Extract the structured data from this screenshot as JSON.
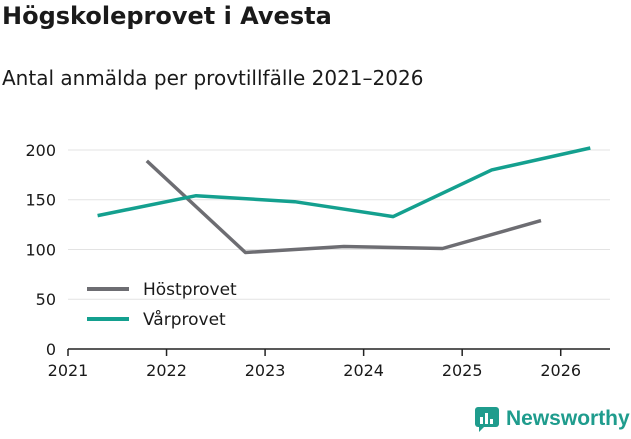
{
  "header": {
    "title": "Högskoleprovet i Avesta",
    "subtitle": "Antal anmälda per provtillfälle 2021–2026"
  },
  "brand": {
    "name": "Newsworthy",
    "color": "#1f9c8d"
  },
  "chart_data": {
    "type": "line",
    "title": "Högskoleprovet i Avesta",
    "subtitle": "Antal anmälda per provtillfälle 2021–2026",
    "xlabel": "",
    "ylabel": "",
    "xlim": [
      2021,
      2026.5
    ],
    "ylim": [
      0,
      210
    ],
    "x_ticks": [
      "2021",
      "2022",
      "2023",
      "2024",
      "2025",
      "2026"
    ],
    "y_ticks": [
      0,
      50,
      100,
      150,
      200
    ],
    "grid": true,
    "legend": "bottom-left",
    "series": [
      {
        "name": "Höstprovet",
        "color": "#6d6d72",
        "x": [
          2021.8,
          2022.8,
          2023.8,
          2024.8,
          2025.8
        ],
        "values": [
          189,
          97,
          103,
          101,
          129
        ]
      },
      {
        "name": "Vårprovet",
        "color": "#14a08f",
        "x": [
          2021.3,
          2022.3,
          2023.3,
          2024.3,
          2025.3,
          2026.3
        ],
        "values": [
          134,
          154,
          148,
          133,
          180,
          202
        ]
      }
    ]
  }
}
